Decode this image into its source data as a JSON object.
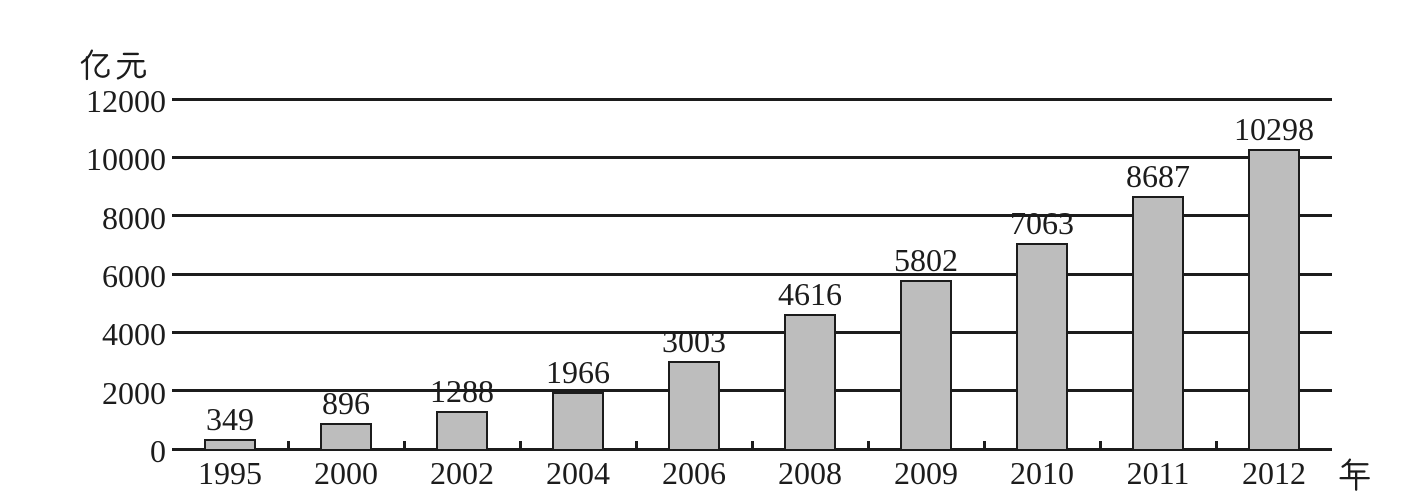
{
  "chart_data": {
    "type": "bar",
    "title": "",
    "categories": [
      "1995",
      "2000",
      "2002",
      "2004",
      "2006",
      "2008",
      "2009",
      "2010",
      "2011",
      "2012"
    ],
    "values": [
      349,
      896,
      1288,
      1966,
      3003,
      4616,
      5802,
      7063,
      8687,
      10298
    ],
    "xlabel": "年",
    "ylabel": "亿元",
    "y_ticks": [
      12000,
      10000,
      8000,
      6000,
      4000,
      2000,
      0
    ],
    "ylim": [
      0,
      12000
    ],
    "grid": true,
    "legend": false,
    "data_labels_shown": true,
    "colors": {
      "bar_fill": "#bdbdbd",
      "bar_border": "#1c1c1c",
      "grid_line": "#1c1c1c",
      "text": "#1c1c1c",
      "background": "#ffffff"
    }
  }
}
